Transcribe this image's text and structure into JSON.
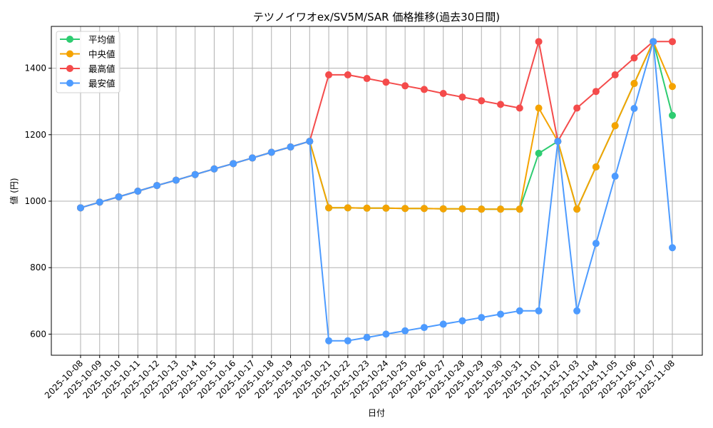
{
  "chart_data": {
    "type": "line",
    "title": "テツノイワオex/SV5M/SAR 価格推移(過去30日間)",
    "xlabel": "日付",
    "ylabel": "値 (円)",
    "ylim": [
      535,
      1520
    ],
    "yticks": [
      600,
      800,
      1000,
      1200,
      1400
    ],
    "grid": true,
    "legend_position": "upper left",
    "categories": [
      "2025-10-08",
      "2025-10-09",
      "2025-10-10",
      "2025-10-11",
      "2025-10-12",
      "2025-10-13",
      "2025-10-14",
      "2025-10-15",
      "2025-10-16",
      "2025-10-17",
      "2025-10-18",
      "2025-10-19",
      "2025-10-20",
      "2025-10-21",
      "2025-10-22",
      "2025-10-23",
      "2025-10-24",
      "2025-10-25",
      "2025-10-26",
      "2025-10-27",
      "2025-10-28",
      "2025-10-29",
      "2025-10-30",
      "2025-10-31",
      "2025-11-01",
      "2025-11-02",
      "2025-11-03",
      "2025-11-04",
      "2025-11-05",
      "2025-11-06",
      "2025-11-07",
      "2025-11-08"
    ],
    "series": [
      {
        "name": "平均値",
        "color": "#2ecc71",
        "values": [
          980,
          997,
          1013,
          1030,
          1047,
          1063,
          1080,
          1097,
          1113,
          1130,
          1147,
          1163,
          1180,
          980,
          980,
          979,
          979,
          978,
          978,
          977,
          977,
          976,
          976,
          976,
          1144,
          1180,
          976,
          1103,
          1227,
          1354,
          1480,
          1258
        ]
      },
      {
        "name": "中央値",
        "color": "#f5a300",
        "values": [
          980,
          997,
          1013,
          1030,
          1047,
          1063,
          1080,
          1097,
          1113,
          1130,
          1147,
          1163,
          1180,
          980,
          980,
          979,
          979,
          978,
          978,
          977,
          977,
          976,
          976,
          976,
          1280,
          1180,
          976,
          1103,
          1227,
          1354,
          1480,
          1345
        ]
      },
      {
        "name": "最高値",
        "color": "#f44b4b",
        "values": [
          980,
          997,
          1013,
          1030,
          1047,
          1063,
          1080,
          1097,
          1113,
          1130,
          1147,
          1163,
          1180,
          1380,
          1380,
          1369,
          1358,
          1347,
          1336,
          1324,
          1313,
          1302,
          1291,
          1280,
          1480,
          1180,
          1280,
          1330,
          1380,
          1431,
          1480,
          1480
        ]
      },
      {
        "name": "最安値",
        "color": "#4d9bff",
        "values": [
          980,
          997,
          1013,
          1030,
          1047,
          1063,
          1080,
          1097,
          1113,
          1130,
          1147,
          1163,
          1180,
          580,
          580,
          590,
          600,
          610,
          620,
          630,
          640,
          650,
          660,
          670,
          670,
          1180,
          670,
          873,
          1075,
          1279,
          1480,
          860
        ]
      }
    ]
  }
}
